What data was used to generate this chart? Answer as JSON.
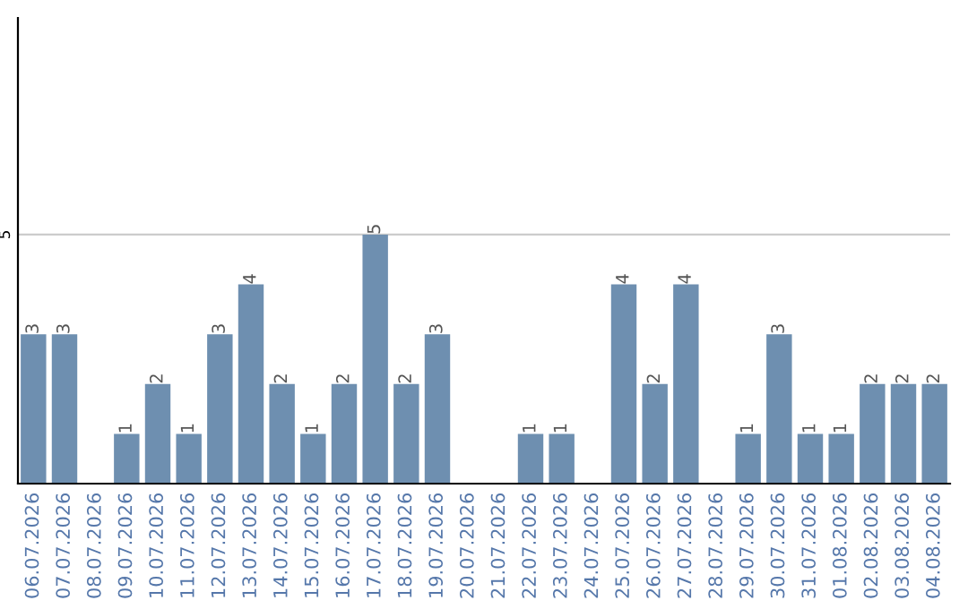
{
  "chart_data": {
    "type": "bar",
    "categories": [
      "06.07.2026",
      "07.07.2026",
      "08.07.2026",
      "09.07.2026",
      "10.07.2026",
      "11.07.2026",
      "12.07.2026",
      "13.07.2026",
      "14.07.2026",
      "15.07.2026",
      "16.07.2026",
      "17.07.2026",
      "18.07.2026",
      "19.07.2026",
      "20.07.2026",
      "21.07.2026",
      "22.07.2026",
      "23.07.2026",
      "24.07.2026",
      "25.07.2026",
      "26.07.2026",
      "27.07.2026",
      "28.07.2026",
      "29.07.2026",
      "30.07.2026",
      "31.07.2026",
      "01.08.2026",
      "02.08.2026",
      "03.08.2026",
      "04.08.2026"
    ],
    "values": [
      3,
      3,
      0,
      1,
      2,
      1,
      3,
      4,
      2,
      1,
      2,
      5,
      2,
      3,
      0,
      0,
      1,
      1,
      0,
      4,
      2,
      4,
      0,
      1,
      3,
      1,
      1,
      2,
      2,
      2
    ],
    "value_labels": [
      "3",
      "3",
      null,
      "1",
      "2",
      "1",
      "3",
      "4",
      "2",
      "1",
      "2",
      "5",
      "2",
      "3",
      null,
      null,
      "1",
      "1",
      null,
      "4",
      "2",
      "4",
      null,
      "1",
      "3",
      "1",
      "1",
      "2",
      "2",
      "2"
    ],
    "color": "#6e8fb0",
    "ylim": [
      0,
      9.35
    ],
    "yticks": [
      5
    ],
    "grid": "y"
  }
}
